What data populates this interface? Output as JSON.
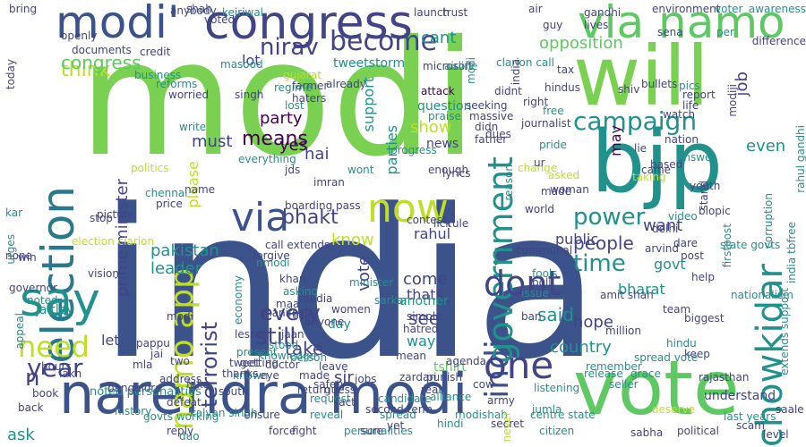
{
  "palette": {
    "background": "#ffffff",
    "lime": "#7ad151",
    "green": "#5ec962",
    "teal": "#21918c",
    "blue": "#3b528b",
    "indigo": "#414487",
    "purple": "#440154",
    "yellow": "#bddf26",
    "cyan": "#2a788e",
    "mint": "#22a884"
  },
  "words": [
    {
      "text": "modi",
      "color": "lime"
    },
    {
      "text": "india",
      "color": "blue"
    },
    {
      "text": "narendra modi",
      "color": "blue"
    },
    {
      "text": "vote",
      "color": "green"
    },
    {
      "text": "bjp",
      "color": "teal"
    },
    {
      "text": "will",
      "color": "lime"
    },
    {
      "text": "congress",
      "color": "indigo"
    },
    {
      "text": "modi'",
      "color": "blue"
    },
    {
      "text": "via namo",
      "color": "green"
    },
    {
      "text": "election",
      "color": "cyan"
    },
    {
      "text": "say",
      "color": "teal"
    },
    {
      "text": "via",
      "color": "blue"
    },
    {
      "text": "now",
      "color": "yellow"
    },
    {
      "text": "india",
      "color": "blue"
    },
    {
      "text": "government",
      "color": "teal"
    },
    {
      "text": "chowkidar",
      "color": "teal"
    },
    {
      "text": "one",
      "color": "indigo"
    },
    {
      "text": "dont",
      "color": "indigo"
    },
    {
      "text": "campaign",
      "color": "teal"
    },
    {
      "text": "need",
      "color": "yellow"
    },
    {
      "text": "year",
      "color": "indigo"
    },
    {
      "text": "become",
      "color": "indigo"
    },
    {
      "text": "nirav",
      "color": "indigo"
    },
    {
      "text": "namo app",
      "color": "yellow"
    },
    {
      "text": "power",
      "color": "teal"
    },
    {
      "text": "time",
      "color": "teal"
    },
    {
      "text": "bhakt",
      "color": "indigo"
    },
    {
      "text": "people",
      "color": "indigo"
    },
    {
      "text": "terrorist",
      "color": "indigo"
    },
    {
      "text": "still",
      "color": "indigo"
    },
    {
      "text": "every",
      "color": "indigo"
    },
    {
      "text": "leader",
      "color": "teal"
    },
    {
      "text": "pakistan",
      "color": "teal"
    },
    {
      "text": "opposition",
      "color": "green"
    },
    {
      "text": "prime minister",
      "color": "indigo"
    },
    {
      "text": "party",
      "color": "purple"
    },
    {
      "text": "means",
      "color": "purple"
    },
    {
      "text": "think",
      "color": "yellow"
    },
    {
      "text": "cant",
      "color": "teal"
    },
    {
      "text": "lot",
      "color": "indigo"
    },
    {
      "text": "job",
      "color": "indigo"
    },
    {
      "text": "hai",
      "color": "indigo"
    },
    {
      "text": "yes",
      "color": "purple"
    },
    {
      "text": "even",
      "color": "teal"
    },
    {
      "text": "take",
      "color": "indigo"
    },
    {
      "text": "said",
      "color": "teal"
    },
    {
      "text": "see",
      "color": "indigo"
    },
    {
      "text": "country",
      "color": "teal"
    },
    {
      "text": "hope",
      "color": "indigo"
    },
    {
      "text": "sir",
      "color": "indigo"
    },
    {
      "text": "way",
      "color": "teal"
    },
    {
      "text": "show",
      "color": "yellow"
    },
    {
      "text": "want",
      "color": "indigo"
    },
    {
      "text": "must",
      "color": "indigo"
    },
    {
      "text": "please",
      "color": "yellow"
    },
    {
      "text": "news",
      "color": "indigo"
    },
    {
      "text": "tweetstorm",
      "color": "teal"
    },
    {
      "text": "support",
      "color": "teal"
    },
    {
      "text": "parties",
      "color": "teal"
    },
    {
      "text": "public",
      "color": "indigo"
    },
    {
      "text": "rahul",
      "color": "indigo"
    },
    {
      "text": "come",
      "color": "indigo"
    },
    {
      "text": "thats",
      "color": "indigo"
    },
    {
      "text": "govt",
      "color": "teal"
    },
    {
      "text": "bharat",
      "color": "teal"
    },
    {
      "text": "let",
      "color": "indigo"
    },
    {
      "text": "jaitley",
      "color": "teal"
    },
    {
      "text": "appeal",
      "color": "teal"
    },
    {
      "text": "vote",
      "color": "indigo"
    },
    {
      "text": "tshirt",
      "color": "green"
    },
    {
      "text": "noted personalities",
      "color": "teal"
    },
    {
      "text": "lakh",
      "color": "indigo"
    },
    {
      "text": "may",
      "color": "purple"
    },
    {
      "text": "know",
      "color": "yellow"
    },
    {
      "text": "question",
      "color": "teal"
    },
    {
      "text": "another",
      "color": "teal"
    },
    {
      "text": "day",
      "color": "teal"
    },
    {
      "text": "candidate",
      "color": "teal"
    },
    {
      "text": "kalyan singh",
      "color": "teal"
    },
    {
      "text": "imran",
      "color": "indigo"
    },
    {
      "text": "answer",
      "color": "teal"
    },
    {
      "text": "address",
      "color": "indigo"
    },
    {
      "text": "picture",
      "color": "indigo"
    },
    {
      "text": "south",
      "color": "indigo"
    },
    {
      "text": "jds",
      "color": "indigo"
    },
    {
      "text": "regime",
      "color": "teal"
    },
    {
      "text": "lost",
      "color": "teal"
    },
    {
      "text": "praise",
      "color": "teal"
    },
    {
      "text": "attack",
      "color": "purple"
    },
    {
      "text": "sarkar",
      "color": "teal"
    },
    {
      "text": "world",
      "color": "indigo"
    },
    {
      "text": "fools",
      "color": "teal"
    },
    {
      "text": "alliance",
      "color": "teal"
    },
    {
      "text": "biggest",
      "color": "indigo"
    },
    {
      "text": "help",
      "color": "indigo"
    },
    {
      "text": "keep",
      "color": "indigo"
    },
    {
      "text": "understand",
      "color": "indigo"
    },
    {
      "text": "seller",
      "color": "teal"
    },
    {
      "text": "last years",
      "color": "teal"
    },
    {
      "text": "political",
      "color": "indigo"
    },
    {
      "text": "deserve",
      "color": "yellow"
    },
    {
      "text": "reply",
      "color": "indigo"
    },
    {
      "text": "force",
      "color": "indigo"
    },
    {
      "text": "ensure",
      "color": "indigo"
    },
    {
      "text": "reveal",
      "color": "teal"
    },
    {
      "text": "fight",
      "color": "indigo"
    },
    {
      "text": "personalities",
      "color": "teal"
    },
    {
      "text": "spread",
      "color": "teal"
    },
    {
      "text": "modishah",
      "color": "teal"
    },
    {
      "text": "centre state",
      "color": "teal"
    },
    {
      "text": "never",
      "color": "yellow"
    },
    {
      "text": "ask",
      "color": "teal"
    },
    {
      "text": "n'",
      "color": "indigo"
    },
    {
      "text": "congress",
      "color": "green"
    },
    {
      "text": "credit",
      "color": "indigo"
    },
    {
      "text": "business",
      "color": "teal"
    },
    {
      "text": "reforms",
      "color": "teal"
    },
    {
      "text": "today",
      "color": "indigo"
    },
    {
      "text": "election clarion",
      "color": "yellow"
    },
    {
      "text": "governor",
      "color": "indigo"
    },
    {
      "text": "noted",
      "color": "teal"
    },
    {
      "text": "urges",
      "color": "teal"
    },
    {
      "text": "kar",
      "color": "teal"
    },
    {
      "text": "none",
      "color": "indigo"
    },
    {
      "text": "stop",
      "color": "indigo"
    },
    {
      "text": "pappu",
      "color": "indigo"
    },
    {
      "text": "mla",
      "color": "indigo"
    },
    {
      "text": "two",
      "color": "indigo"
    },
    {
      "text": "jai",
      "color": "indigo"
    },
    {
      "text": "doctor",
      "color": "indigo"
    },
    {
      "text": "women",
      "color": "indigo"
    },
    {
      "text": "asking",
      "color": "teal"
    },
    {
      "text": "khan",
      "color": "indigo"
    },
    {
      "text": "media",
      "color": "indigo"
    },
    {
      "text": "contest",
      "color": "indigo"
    },
    {
      "text": "call extends",
      "color": "indigo"
    },
    {
      "text": "nmodi",
      "color": "teal"
    },
    {
      "text": "amit shah",
      "color": "indigo"
    },
    {
      "text": "arvind",
      "color": "indigo"
    },
    {
      "text": "rahul gandhi",
      "color": "teal"
    },
    {
      "text": "extends support",
      "color": "teal"
    },
    {
      "text": "india tbfree",
      "color": "teal"
    },
    {
      "text": "corruption",
      "color": "teal"
    },
    {
      "text": "nation",
      "color": "indigo"
    },
    {
      "text": "watch",
      "color": "indigo"
    },
    {
      "text": "report",
      "color": "indigo"
    },
    {
      "text": "life",
      "color": "indigo"
    },
    {
      "text": "voter",
      "color": "teal"
    },
    {
      "text": "awareness",
      "color": "teal"
    },
    {
      "text": "environment",
      "color": "indigo"
    },
    {
      "text": "clarion call",
      "color": "teal"
    },
    {
      "text": "guy",
      "color": "indigo"
    },
    {
      "text": "air",
      "color": "indigo"
    },
    {
      "text": "trust",
      "color": "indigo"
    },
    {
      "text": "masood",
      "color": "teal"
    },
    {
      "text": "already",
      "color": "indigo"
    },
    {
      "text": "boarding pass",
      "color": "indigo"
    },
    {
      "text": "hindu",
      "color": "teal"
    },
    {
      "text": "simple",
      "color": "indigo"
    },
    {
      "text": "hatred",
      "color": "indigo"
    },
    {
      "text": "poll",
      "color": "indigo"
    },
    {
      "text": "price",
      "color": "indigo"
    },
    {
      "text": "name",
      "color": "indigo"
    },
    {
      "text": "bring",
      "color": "indigo"
    },
    {
      "text": "voted",
      "color": "indigo"
    },
    {
      "text": "shah",
      "color": "indigo"
    },
    {
      "text": "modi",
      "color": "teal"
    },
    {
      "text": "india",
      "color": "indigo"
    },
    {
      "text": "didnt",
      "color": "indigo"
    },
    {
      "text": "enough",
      "color": "indigo"
    },
    {
      "text": "taking",
      "color": "yellow"
    },
    {
      "text": "biopic",
      "color": "indigo"
    },
    {
      "text": "youth",
      "color": "indigo"
    },
    {
      "text": "spread vote",
      "color": "teal"
    },
    {
      "text": "remember",
      "color": "teal"
    },
    {
      "text": "grace",
      "color": "teal"
    },
    {
      "text": "release",
      "color": "teal"
    },
    {
      "text": "lick",
      "color": "indigo"
    },
    {
      "text": "rule",
      "color": "indigo"
    },
    {
      "text": "present",
      "color": "teal"
    },
    {
      "text": "known",
      "color": "teal"
    },
    {
      "text": "win",
      "color": "indigo"
    },
    {
      "text": "team",
      "color": "indigo"
    },
    {
      "text": "back",
      "color": "indigo"
    },
    {
      "text": "book",
      "color": "indigo"
    },
    {
      "text": "vision",
      "color": "indigo"
    },
    {
      "text": "shiv",
      "color": "indigo"
    },
    {
      "text": "difference",
      "color": "indigo"
    },
    {
      "text": "per",
      "color": "teal"
    },
    {
      "text": "sena",
      "color": "indigo"
    },
    {
      "text": "modiji",
      "color": "indigo"
    },
    {
      "text": "pics",
      "color": "teal"
    },
    {
      "text": "video",
      "color": "teal"
    },
    {
      "text": "dare",
      "color": "indigo"
    },
    {
      "text": "based",
      "color": "indigo"
    },
    {
      "text": "came",
      "color": "indigo"
    },
    {
      "text": "lie",
      "color": "indigo"
    },
    {
      "text": "delhi",
      "color": "indigo"
    },
    {
      "text": "million",
      "color": "indigo"
    },
    {
      "text": "issue",
      "color": "teal"
    },
    {
      "text": "ban",
      "color": "indigo"
    },
    {
      "text": "jumla",
      "color": "teal"
    },
    {
      "text": "listening",
      "color": "teal"
    },
    {
      "text": "citizen",
      "color": "teal"
    },
    {
      "text": "communal",
      "color": "indigo"
    },
    {
      "text": "gandhi",
      "color": "indigo"
    },
    {
      "text": "lives",
      "color": "indigo"
    },
    {
      "text": "modi",
      "color": "indigo"
    },
    {
      "text": "write",
      "color": "teal"
    },
    {
      "text": "post",
      "color": "indigo"
    },
    {
      "text": "state govts",
      "color": "teal"
    },
    {
      "text": "firstpost",
      "color": "teal"
    },
    {
      "text": "stand",
      "color": "indigo"
    },
    {
      "text": "duo",
      "color": "teal"
    },
    {
      "text": "saale",
      "color": "indigo"
    },
    {
      "text": "level",
      "color": "indigo"
    },
    {
      "text": "scam",
      "color": "indigo"
    },
    {
      "text": "microsoft",
      "color": "indigo"
    },
    {
      "text": "airline",
      "color": "teal"
    },
    {
      "text": "haters",
      "color": "indigo"
    },
    {
      "text": "farmer",
      "color": "indigo"
    },
    {
      "text": "gujarat",
      "color": "yellow"
    },
    {
      "text": "economy",
      "color": "teal"
    },
    {
      "text": "lesson",
      "color": "indigo"
    },
    {
      "text": "person",
      "color": "teal"
    },
    {
      "text": "return",
      "color": "indigo"
    },
    {
      "text": "request",
      "color": "teal"
    },
    {
      "text": "made",
      "color": "indigo"
    },
    {
      "text": "safety",
      "color": "indigo"
    },
    {
      "text": "leave",
      "color": "indigo"
    },
    {
      "text": "defeat",
      "color": "indigo"
    },
    {
      "text": "fake",
      "color": "indigo"
    },
    {
      "text": "forgive",
      "color": "indigo"
    },
    {
      "text": "minister",
      "color": "teal"
    },
    {
      "text": "zardari",
      "color": "indigo"
    },
    {
      "text": "secret",
      "color": "indigo"
    },
    {
      "text": "fact",
      "color": "indigo"
    },
    {
      "text": "guess",
      "color": "indigo"
    },
    {
      "text": "real",
      "color": "indigo"
    },
    {
      "text": "punish",
      "color": "indigo"
    },
    {
      "text": "agenda",
      "color": "indigo"
    },
    {
      "text": "rajasthan",
      "color": "indigo"
    },
    {
      "text": "sabha",
      "color": "indigo"
    },
    {
      "text": "second term",
      "color": "indigo"
    },
    {
      "text": "nationalism",
      "color": "teal"
    },
    {
      "text": "documents",
      "color": "indigo"
    },
    {
      "text": "openly",
      "color": "indigo"
    },
    {
      "text": "anybody",
      "color": "indigo"
    },
    {
      "text": "kejriwal",
      "color": "teal"
    },
    {
      "text": "launch",
      "color": "indigo"
    },
    {
      "text": "progress",
      "color": "teal"
    },
    {
      "text": "father",
      "color": "indigo"
    },
    {
      "text": "pride",
      "color": "teal"
    },
    {
      "text": "bullets",
      "color": "indigo"
    },
    {
      "text": "reason",
      "color": "teal"
    },
    {
      "text": "dues",
      "color": "indigo"
    },
    {
      "text": "asked",
      "color": "yellow"
    },
    {
      "text": "change",
      "color": "yellow"
    },
    {
      "text": "woman",
      "color": "indigo"
    },
    {
      "text": "ur",
      "color": "indigo"
    },
    {
      "text": "lyrics",
      "color": "indigo"
    },
    {
      "text": "wont",
      "color": "teal"
    },
    {
      "text": "everything",
      "color": "teal"
    },
    {
      "text": "politics",
      "color": "yellow"
    },
    {
      "text": "chennai",
      "color": "teal"
    },
    {
      "text": "hours",
      "color": "indigo"
    },
    {
      "text": "history",
      "color": "teal"
    },
    {
      "text": "bangalore",
      "color": "indigo"
    },
    {
      "text": "govts working",
      "color": "teal"
    },
    {
      "text": "worried",
      "color": "indigo"
    },
    {
      "text": "singh",
      "color": "indigo"
    },
    {
      "text": "seeking",
      "color": "indigo"
    },
    {
      "text": "massive",
      "color": "indigo"
    },
    {
      "text": "didn",
      "color": "indigo"
    },
    {
      "text": "thanks",
      "color": "indigo"
    },
    {
      "text": "tweet",
      "color": "indigo"
    },
    {
      "text": "getting",
      "color": "indigo"
    },
    {
      "text": "knowledge",
      "color": "teal"
    },
    {
      "text": "eye",
      "color": "indigo"
    },
    {
      "text": "stood",
      "color": "teal"
    },
    {
      "text": "jaan",
      "color": "indigo"
    },
    {
      "text": "manifest",
      "color": "indigo"
    },
    {
      "text": "maa",
      "color": "indigo"
    },
    {
      "text": "true",
      "color": "indigo"
    },
    {
      "text": "anyone",
      "color": "indigo"
    },
    {
      "text": "jobs",
      "color": "indigo"
    },
    {
      "text": "cow",
      "color": "indigo"
    },
    {
      "text": "hindi",
      "color": "teal"
    },
    {
      "text": "army",
      "color": "indigo"
    },
    {
      "text": "yet",
      "color": "indigo"
    },
    {
      "text": "sure",
      "color": "indigo"
    },
    {
      "text": "mean",
      "color": "indigo"
    },
    {
      "text": "made",
      "color": "indigo"
    },
    {
      "text": "free",
      "color": "teal"
    },
    {
      "text": "right",
      "color": "indigo"
    },
    {
      "text": "journalist",
      "color": "indigo"
    },
    {
      "text": "hindus",
      "color": "indigo"
    },
    {
      "text": "tax",
      "color": "indigo"
    },
    {
      "text": "lutyen",
      "color": "teal"
    },
    {
      "text": "voters",
      "color": "teal"
    },
    {
      "text": "modis",
      "color": "indigo"
    },
    {
      "text": "dalit",
      "color": "indigo"
    },
    {
      "text": "whats",
      "color": "teal"
    },
    {
      "text": "gave",
      "color": "indigo"
    },
    {
      "text": "vs",
      "color": "indigo"
    }
  ]
}
